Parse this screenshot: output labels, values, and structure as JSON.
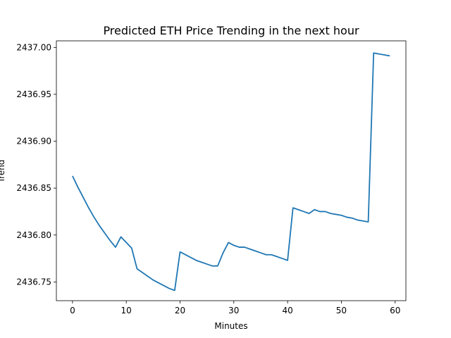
{
  "chart_data": {
    "type": "line",
    "title": "Predicted ETH Price Trending in the next hour",
    "xlabel": "Minutes",
    "ylabel": "Trend",
    "xlim": [
      -3,
      62
    ],
    "ylim": [
      2436.73,
      2437.007
    ],
    "xticks": [
      0,
      10,
      20,
      30,
      40,
      50,
      60
    ],
    "yticks": [
      2436.75,
      2436.8,
      2436.85,
      2436.9,
      2436.95,
      2437.0
    ],
    "ytick_labels": [
      "2436.75",
      "2436.80",
      "2436.85",
      "2436.90",
      "2436.95",
      "2437.00"
    ],
    "grid": false,
    "series": [
      {
        "color": "#1f77b4",
        "x": [
          0,
          1,
          2,
          3,
          4,
          5,
          6,
          7,
          8,
          9,
          10,
          11,
          12,
          13,
          14,
          15,
          16,
          17,
          18,
          19,
          20,
          21,
          22,
          23,
          24,
          25,
          26,
          27,
          28,
          29,
          30,
          31,
          32,
          33,
          34,
          35,
          36,
          37,
          38,
          39,
          40,
          41,
          42,
          43,
          44,
          45,
          46,
          47,
          48,
          49,
          50,
          51,
          52,
          53,
          54,
          55,
          56,
          57,
          58,
          59
        ],
        "y": [
          2436.863,
          2436.851,
          2436.84,
          2436.829,
          2436.819,
          2436.81,
          2436.802,
          2436.794,
          2436.787,
          2436.798,
          2436.792,
          2436.786,
          2436.764,
          2436.76,
          2436.756,
          2436.752,
          2436.749,
          2436.746,
          2436.743,
          2436.741,
          2436.782,
          2436.779,
          2436.776,
          2436.773,
          2436.771,
          2436.769,
          2436.767,
          2436.767,
          2436.781,
          2436.792,
          2436.789,
          2436.787,
          2436.787,
          2436.785,
          2436.783,
          2436.781,
          2436.779,
          2436.779,
          2436.777,
          2436.775,
          2436.773,
          2436.829,
          2436.827,
          2436.825,
          2436.823,
          2436.827,
          2436.825,
          2436.825,
          2436.823,
          2436.822,
          2436.821,
          2436.819,
          2436.818,
          2436.816,
          2436.815,
          2436.814,
          2436.994,
          2436.993,
          2436.992,
          2436.991
        ]
      }
    ]
  }
}
